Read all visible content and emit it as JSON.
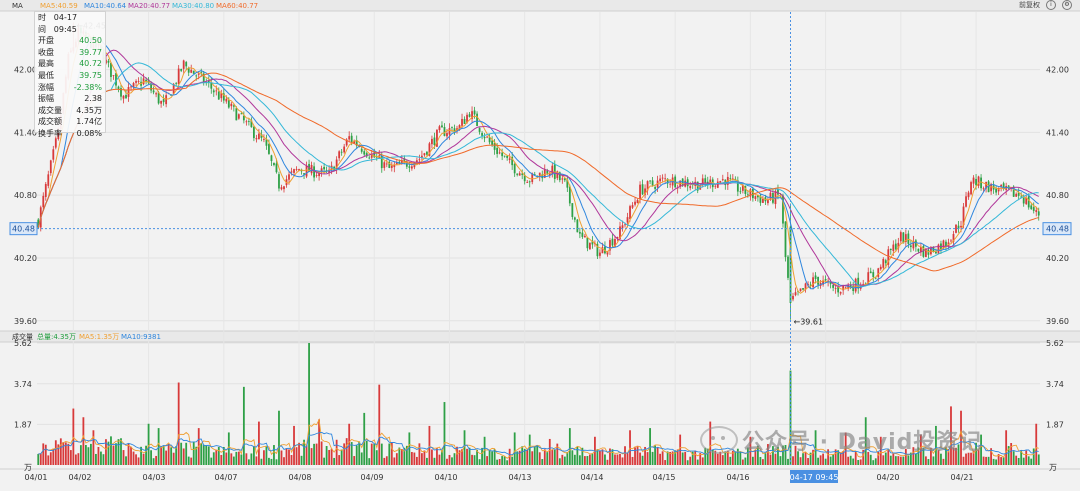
{
  "top_bar": {
    "symbol": "MA",
    "ma_labels": [
      {
        "text": "MA5:40.59",
        "color": "#f0a032"
      },
      {
        "text": "MA10:40.64",
        "color": "#2e86de"
      },
      {
        "text": "MA20:40.77",
        "color": "#b0379a"
      },
      {
        "text": "MA30:40.80",
        "color": "#34b8d8"
      },
      {
        "text": "MA60:40.77",
        "color": "#f06a2a"
      }
    ],
    "adjust_label": "前复权"
  },
  "volume_bar": {
    "title": "成交量",
    "labels": [
      {
        "text": "总量:4.35万",
        "color": "#1f9d3c"
      },
      {
        "text": "MA5:1.35万",
        "color": "#f0a032"
      },
      {
        "text": "MA10:9381",
        "color": "#2e86de"
      }
    ]
  },
  "hud": [
    {
      "k": "时间",
      "v": "04-17 09:45",
      "c": ""
    },
    {
      "k": "开盘",
      "v": "40.50",
      "c": "g"
    },
    {
      "k": "收盘",
      "v": "39.77",
      "c": "g"
    },
    {
      "k": "最高",
      "v": "40.72",
      "c": "g"
    },
    {
      "k": "最低",
      "v": "39.75",
      "c": "g"
    },
    {
      "k": "涨幅",
      "v": "-2.38%",
      "c": "g"
    },
    {
      "k": "振幅",
      "v": "2.38",
      "c": ""
    },
    {
      "k": "成交量",
      "v": "4.35万",
      "c": ""
    },
    {
      "k": "成交额",
      "v": "1.74亿",
      "c": ""
    },
    {
      "k": "换手率",
      "v": "0.08%",
      "c": ""
    }
  ],
  "watermark": "公众号 · David投资记",
  "chart_data": {
    "type": "candlestick",
    "price_axis": {
      "ticks": [
        "42.00",
        "41.40",
        "40.80",
        "40.20",
        "39.60"
      ],
      "ylim": [
        39.55,
        42.55
      ]
    },
    "volume_axis": {
      "ticks": [
        "5.62",
        "3.74",
        "1.87"
      ],
      "unit": "万",
      "ylim": [
        0,
        5.62
      ]
    },
    "x_labels": [
      "04/01",
      "04/02",
      "04/03",
      "04/07",
      "04/08",
      "04/09",
      "04/10",
      "04/13",
      "04/14",
      "04/15",
      "04/16",
      "04-17 09:45",
      "04/20",
      "04/21"
    ],
    "crosshair": {
      "time": "04-17 09:45",
      "price": "40.48"
    },
    "annotations": {
      "high": "42.45",
      "low": "39.61"
    },
    "price_anchors": [
      [
        0,
        40.55
      ],
      [
        8,
        41.4
      ],
      [
        12,
        42.1
      ],
      [
        16,
        42.35
      ],
      [
        24,
        42.2
      ],
      [
        34,
        41.75
      ],
      [
        42,
        41.9
      ],
      [
        50,
        41.65
      ],
      [
        58,
        42.05
      ],
      [
        68,
        41.85
      ],
      [
        78,
        41.6
      ],
      [
        90,
        41.3
      ],
      [
        96,
        40.9
      ],
      [
        104,
        41.05
      ],
      [
        116,
        41.0
      ],
      [
        124,
        41.35
      ],
      [
        132,
        41.2
      ],
      [
        140,
        41.05
      ],
      [
        152,
        41.15
      ],
      [
        160,
        41.4
      ],
      [
        168,
        41.45
      ],
      [
        172,
        41.6
      ],
      [
        180,
        41.3
      ],
      [
        188,
        41.1
      ],
      [
        196,
        40.95
      ],
      [
        204,
        41.05
      ],
      [
        210,
        40.9
      ],
      [
        216,
        40.4
      ],
      [
        224,
        40.25
      ],
      [
        232,
        40.45
      ],
      [
        240,
        40.85
      ],
      [
        250,
        40.95
      ],
      [
        264,
        40.9
      ],
      [
        274,
        40.95
      ],
      [
        280,
        40.85
      ],
      [
        290,
        40.75
      ],
      [
        296,
        40.8
      ],
      [
        298,
        40.2
      ],
      [
        300,
        39.78
      ],
      [
        310,
        40.0
      ],
      [
        318,
        39.9
      ],
      [
        326,
        39.95
      ],
      [
        334,
        40.05
      ],
      [
        344,
        40.4
      ],
      [
        354,
        40.25
      ],
      [
        362,
        40.35
      ],
      [
        368,
        40.55
      ],
      [
        372,
        40.95
      ],
      [
        382,
        40.85
      ],
      [
        392,
        40.8
      ],
      [
        398,
        40.62
      ]
    ],
    "volume_anchors": [
      [
        0,
        0.6
      ],
      [
        10,
        0.9
      ],
      [
        20,
        0.7
      ],
      [
        30,
        0.9
      ],
      [
        40,
        0.6
      ],
      [
        60,
        0.7
      ],
      [
        80,
        0.5
      ],
      [
        100,
        0.7
      ],
      [
        120,
        0.8
      ],
      [
        140,
        0.7
      ],
      [
        160,
        0.6
      ],
      [
        180,
        0.5
      ],
      [
        200,
        0.6
      ],
      [
        210,
        0.8
      ],
      [
        220,
        0.5
      ],
      [
        240,
        0.6
      ],
      [
        260,
        0.5
      ],
      [
        280,
        0.5
      ],
      [
        295,
        0.7
      ],
      [
        305,
        0.6
      ],
      [
        320,
        0.45
      ],
      [
        340,
        0.5
      ],
      [
        360,
        0.55
      ],
      [
        370,
        0.8
      ],
      [
        380,
        0.6
      ],
      [
        398,
        0.7
      ]
    ],
    "volume_spikes": [
      [
        14,
        2.6
      ],
      [
        18,
        2.2
      ],
      [
        22,
        1.6
      ],
      [
        44,
        1.9
      ],
      [
        48,
        1.7
      ],
      [
        56,
        3.8
      ],
      [
        64,
        1.7
      ],
      [
        76,
        1.5
      ],
      [
        82,
        3.6
      ],
      [
        88,
        2.0
      ],
      [
        96,
        2.5
      ],
      [
        102,
        1.8
      ],
      [
        108,
        5.62
      ],
      [
        112,
        2.1
      ],
      [
        124,
        1.9
      ],
      [
        130,
        2.4
      ],
      [
        136,
        3.7
      ],
      [
        148,
        1.5
      ],
      [
        156,
        1.8
      ],
      [
        162,
        2.9
      ],
      [
        170,
        1.6
      ],
      [
        178,
        1.3
      ],
      [
        190,
        1.5
      ],
      [
        196,
        1.4
      ],
      [
        204,
        1.2
      ],
      [
        212,
        1.7
      ],
      [
        222,
        1.3
      ],
      [
        236,
        1.6
      ],
      [
        244,
        1.7
      ],
      [
        256,
        1.4
      ],
      [
        268,
        2.0
      ],
      [
        284,
        1.3
      ],
      [
        300,
        4.35
      ],
      [
        310,
        1.6
      ],
      [
        322,
        1.5
      ],
      [
        330,
        2.2
      ],
      [
        336,
        1.3
      ],
      [
        352,
        1.4
      ],
      [
        358,
        1.8
      ],
      [
        364,
        2.7
      ],
      [
        368,
        2.5
      ],
      [
        376,
        1.4
      ],
      [
        386,
        1.6
      ],
      [
        398,
        1.9
      ]
    ],
    "ma_series": [
      {
        "name": "MA5",
        "period": 5,
        "color": "#f0a032"
      },
      {
        "name": "MA10",
        "period": 10,
        "color": "#2e86de"
      },
      {
        "name": "MA20",
        "period": 20,
        "color": "#b0379a"
      },
      {
        "name": "MA30",
        "period": 30,
        "color": "#34b8d8"
      },
      {
        "name": "MA60",
        "period": 60,
        "color": "#f06a2a"
      }
    ],
    "colors": {
      "up": "#d8393a",
      "down": "#2ea046",
      "crosshair": "#4a90e2",
      "grid": "#e2e2e2"
    }
  }
}
